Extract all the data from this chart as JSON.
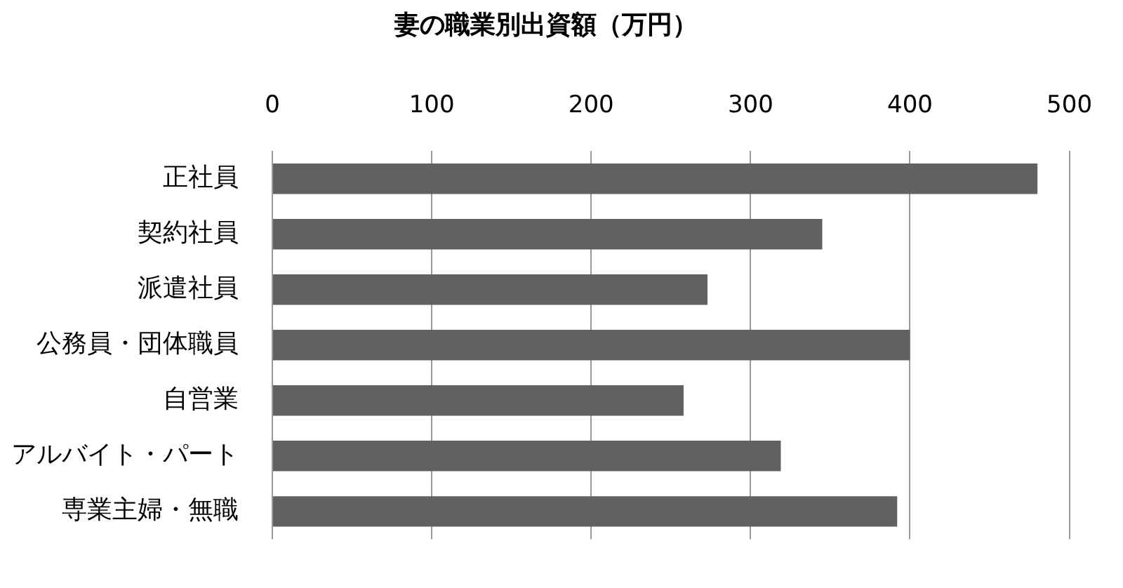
{
  "chart_data": {
    "type": "bar",
    "orientation": "horizontal",
    "title": "妻の職業別出資額（万円）",
    "categories": [
      "正社員",
      "契約社員",
      "派遣社員",
      "公務員・団体職員",
      "自営業",
      "アルバイト・パート",
      "専業主婦・無職"
    ],
    "values": [
      480,
      345,
      273,
      400,
      258,
      319,
      392
    ],
    "color": "#626160",
    "xlim": [
      0,
      500
    ],
    "xticks": [
      0,
      100,
      200,
      300,
      400,
      500
    ],
    "grid": "x"
  }
}
